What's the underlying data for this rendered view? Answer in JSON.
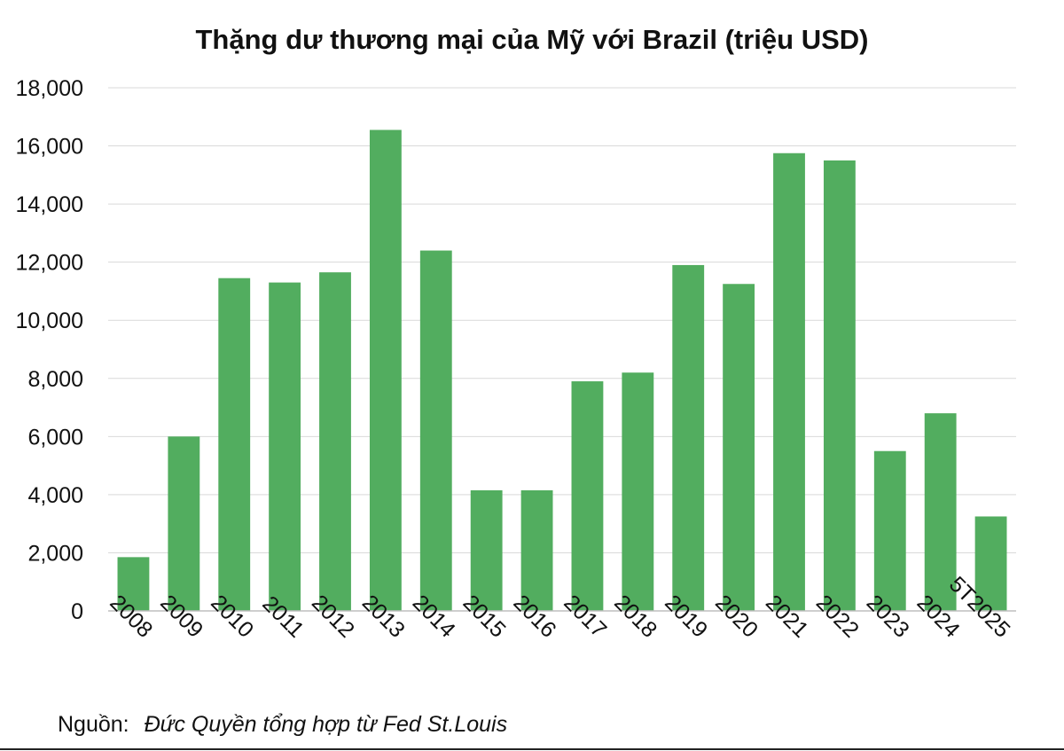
{
  "chart_data": {
    "type": "bar",
    "title": "Thặng dư thương mại của Mỹ với Brazil (triệu USD)",
    "xlabel": "",
    "ylabel": "",
    "categories": [
      "2008",
      "2009",
      "2010",
      "2011",
      "2012",
      "2013",
      "2014",
      "2015",
      "2016",
      "2017",
      "2018",
      "2019",
      "2020",
      "2021",
      "2022",
      "2023",
      "2024",
      "5T2025"
    ],
    "values": [
      1850,
      6000,
      11450,
      11300,
      11650,
      16550,
      12400,
      4150,
      4150,
      7900,
      8200,
      11900,
      11250,
      15750,
      15500,
      5500,
      6800,
      3250
    ],
    "ylim": [
      0,
      18000
    ],
    "yticks": [
      "0",
      "2,000",
      "4,000",
      "6,000",
      "8,000",
      "10,000",
      "12,000",
      "14,000",
      "16,000",
      "18,000"
    ],
    "ytick_values": [
      0,
      2000,
      4000,
      6000,
      8000,
      10000,
      12000,
      14000,
      16000,
      18000
    ],
    "grid": "horizontal",
    "legend": "none",
    "bar_color": "#52ad5f",
    "grid_color": "#d9d9d9",
    "axis_color": "#bfbfbf"
  },
  "source": {
    "label": "Nguồn:",
    "text": "Đức Quyền tổng hợp từ Fed St.Louis"
  }
}
